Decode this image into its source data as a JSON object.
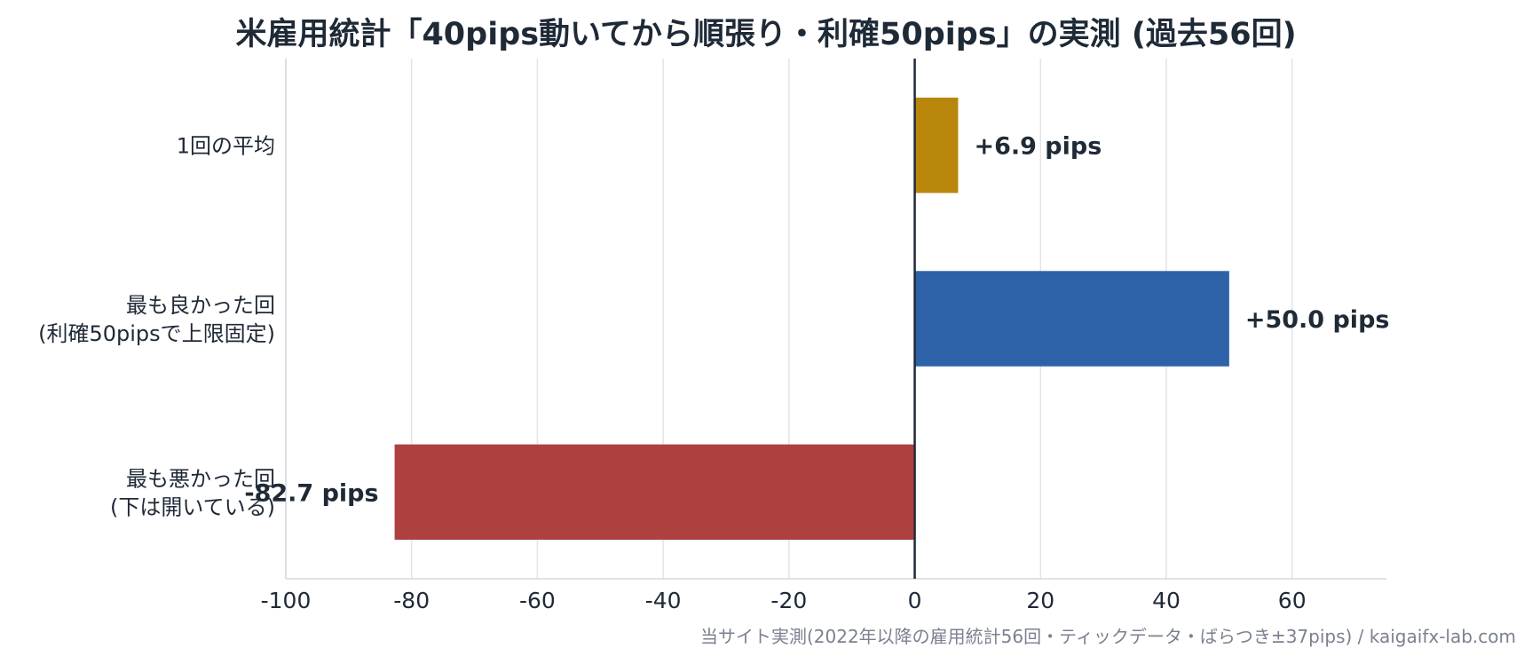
{
  "chart_data": {
    "type": "bar",
    "orientation": "horizontal",
    "title": "米雇用統計「40pips動いてから順張り・利確50pips」の実測 (過去56回)",
    "xlabel": "",
    "ylabel": "",
    "xlim": [
      -100,
      75
    ],
    "xticks": [
      -100,
      -80,
      -60,
      -40,
      -20,
      0,
      20,
      40,
      60
    ],
    "grid": "vertical",
    "categories": [
      [
        "1回の平均"
      ],
      [
        "最も良かった回",
        "(利確50pipsで上限固定)"
      ],
      [
        "最も悪かった回",
        "(下は開いている)"
      ]
    ],
    "values": [
      6.9,
      50.0,
      -82.7
    ],
    "value_labels": [
      "+6.9 pips",
      "+50.0 pips",
      "-82.7 pips"
    ],
    "colors": [
      "#b8860b",
      "#2e62a8",
      "#ae4140"
    ],
    "source": "当サイト実測(2022年以降の雇用統計56回・ティックデータ・ばらつき±37pips) / kaigaifx-lab.com"
  }
}
